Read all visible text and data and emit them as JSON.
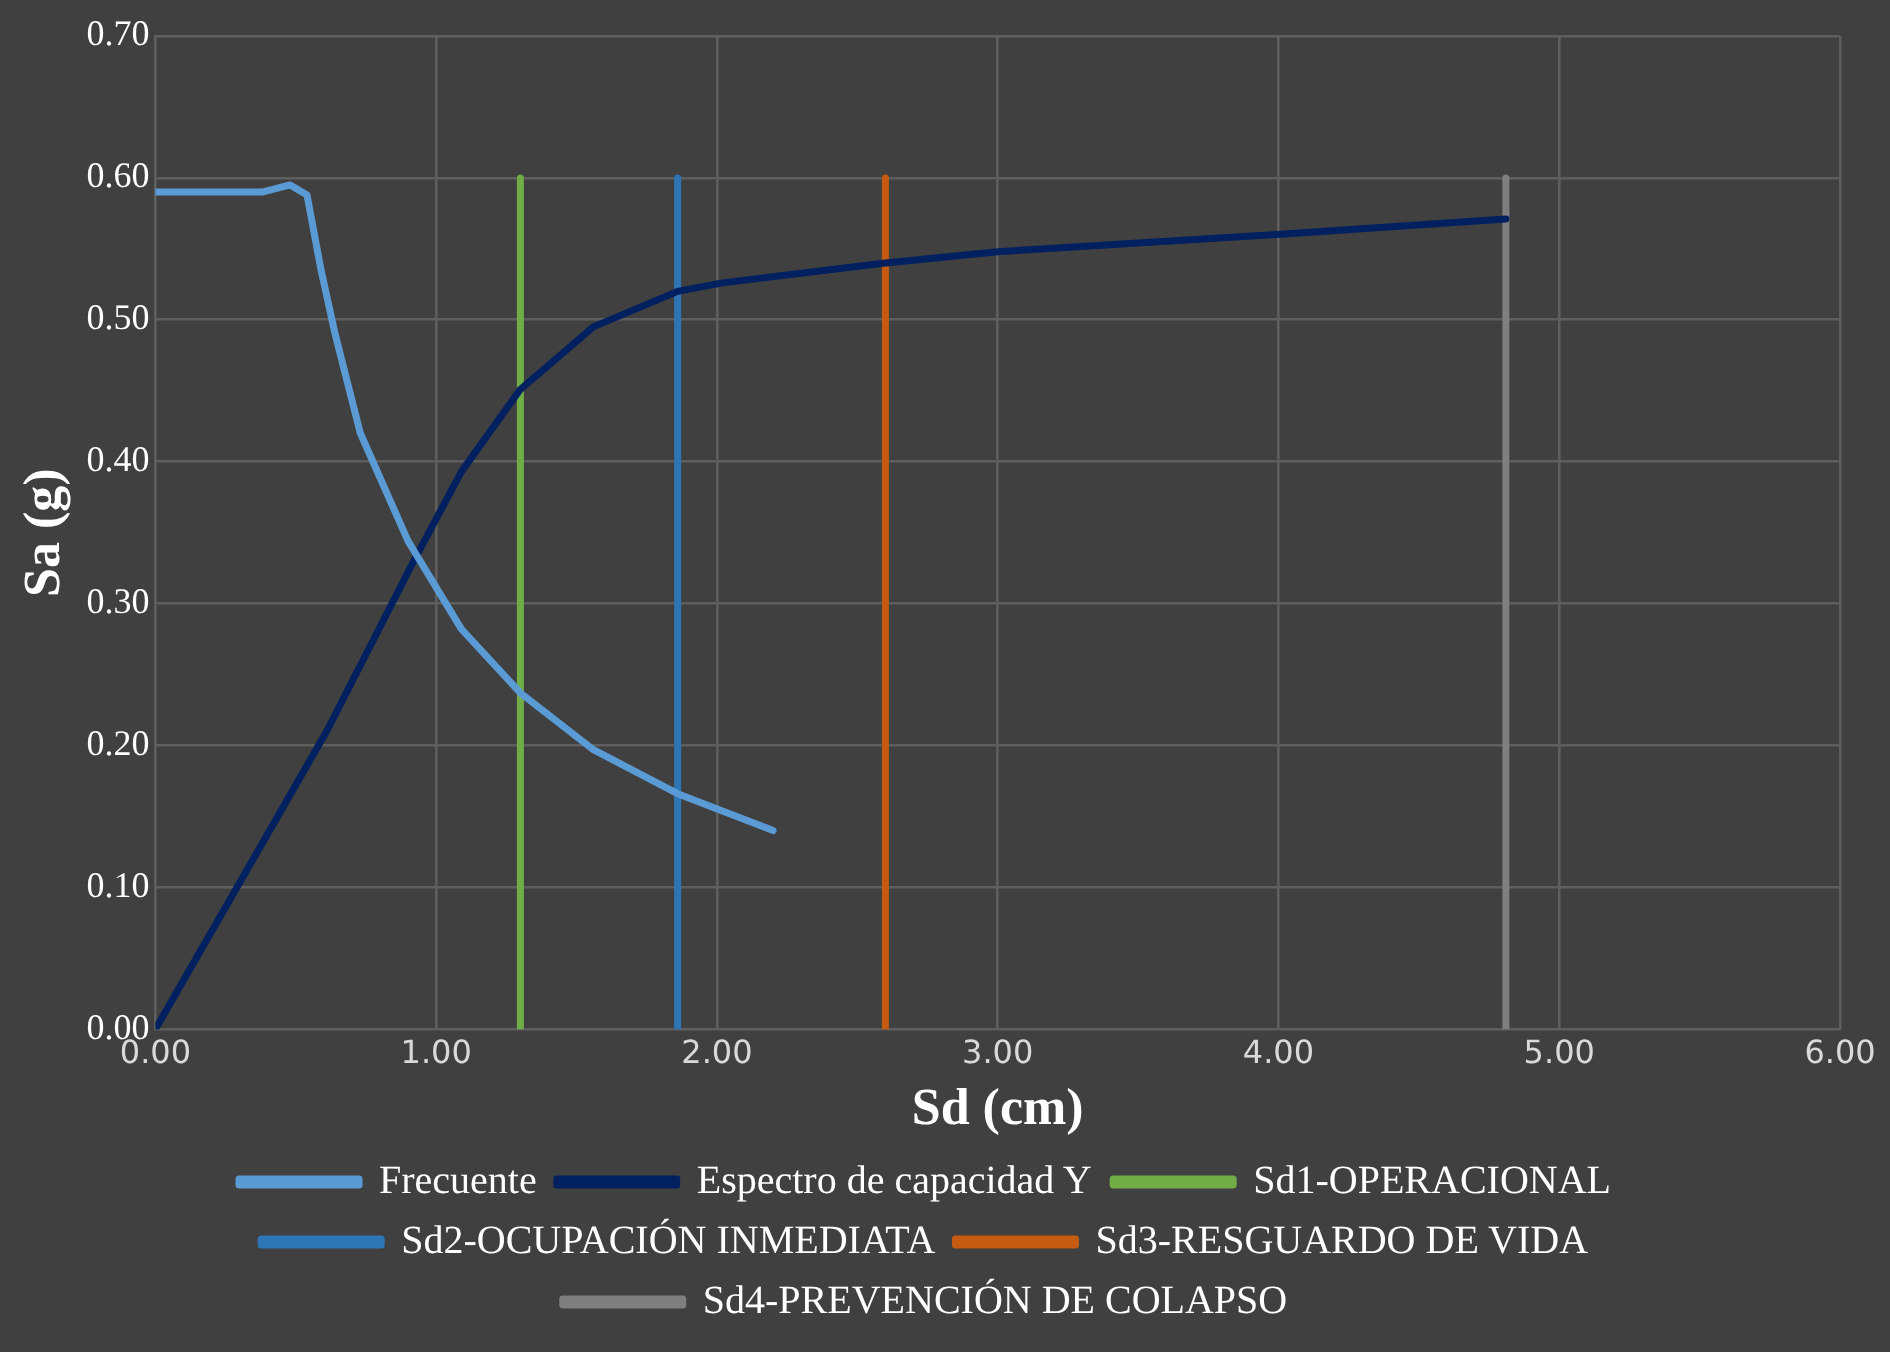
{
  "chart_data": {
    "type": "line",
    "xlabel": "Sd (cm)",
    "ylabel": "Sa (g)",
    "xlim": [
      0,
      6
    ],
    "xticks": [
      {
        "value": 0,
        "label": "0.00"
      },
      {
        "value": 1,
        "label": "1.00"
      },
      {
        "value": 2,
        "label": "2.00"
      },
      {
        "value": 3,
        "label": "3.00"
      },
      {
        "value": 4,
        "label": "4.00"
      },
      {
        "value": 5,
        "label": "5.00"
      },
      {
        "value": 6,
        "label": "6.00"
      }
    ],
    "ylim": [
      0,
      0.7
    ],
    "yticks": [
      {
        "value": 0,
        "label": "0.00"
      },
      {
        "value": 0.1,
        "label": "0.10"
      },
      {
        "value": 0.2,
        "label": "0.20"
      },
      {
        "value": 0.3,
        "label": "0.30"
      },
      {
        "value": 0.4,
        "label": "0.40"
      },
      {
        "value": 0.5,
        "label": "0.50"
      },
      {
        "value": 0.6,
        "label": "0.60"
      },
      {
        "value": 0.7,
        "label": "0.70"
      }
    ],
    "grid": true,
    "legend": "bottom",
    "marker": "none",
    "line_style": "solid",
    "series": [
      {
        "name": "Frecuente",
        "color": "#5b9bd5",
        "x": [
          0,
          0.38,
          0.48,
          0.54,
          0.59,
          0.64,
          0.73,
          0.9,
          1.09,
          1.3,
          1.56,
          1.86,
          2.2
        ],
        "values": [
          0.59,
          0.59,
          0.595,
          0.588,
          0.535,
          0.49,
          0.42,
          0.344,
          0.282,
          0.237,
          0.197,
          0.166,
          0.14
        ]
      },
      {
        "name": "Espectro de capacidad Y",
        "color": "#002060",
        "x": [
          0,
          0.61,
          0.92,
          1.09,
          1.3,
          1.56,
          1.86,
          2.02,
          2.6,
          3.0,
          3.98,
          4.81
        ],
        "values": [
          0,
          0.21,
          0.33,
          0.393,
          0.451,
          0.495,
          0.52,
          0.526,
          0.54,
          0.548,
          0.56,
          0.571
        ]
      },
      {
        "name": "Sd1-OPERACIONAL",
        "color": "#70ad47",
        "x": [
          1.3,
          1.3
        ],
        "values": [
          0,
          0.6
        ]
      },
      {
        "name": "Sd2-OCUPACIÓN INMEDIATA",
        "color": "#2e75b6",
        "x": [
          1.86,
          1.86
        ],
        "values": [
          0,
          0.6
        ]
      },
      {
        "name": "Sd3-RESGUARDO DE VIDA",
        "color": "#c55a11",
        "x": [
          2.6,
          2.6
        ],
        "values": [
          0,
          0.6
        ]
      },
      {
        "name": "Sd4-PREVENCIÓN DE COLAPSO",
        "color": "#7f7f7f",
        "x": [
          4.81,
          4.81
        ],
        "values": [
          0,
          0.6
        ]
      }
    ]
  }
}
